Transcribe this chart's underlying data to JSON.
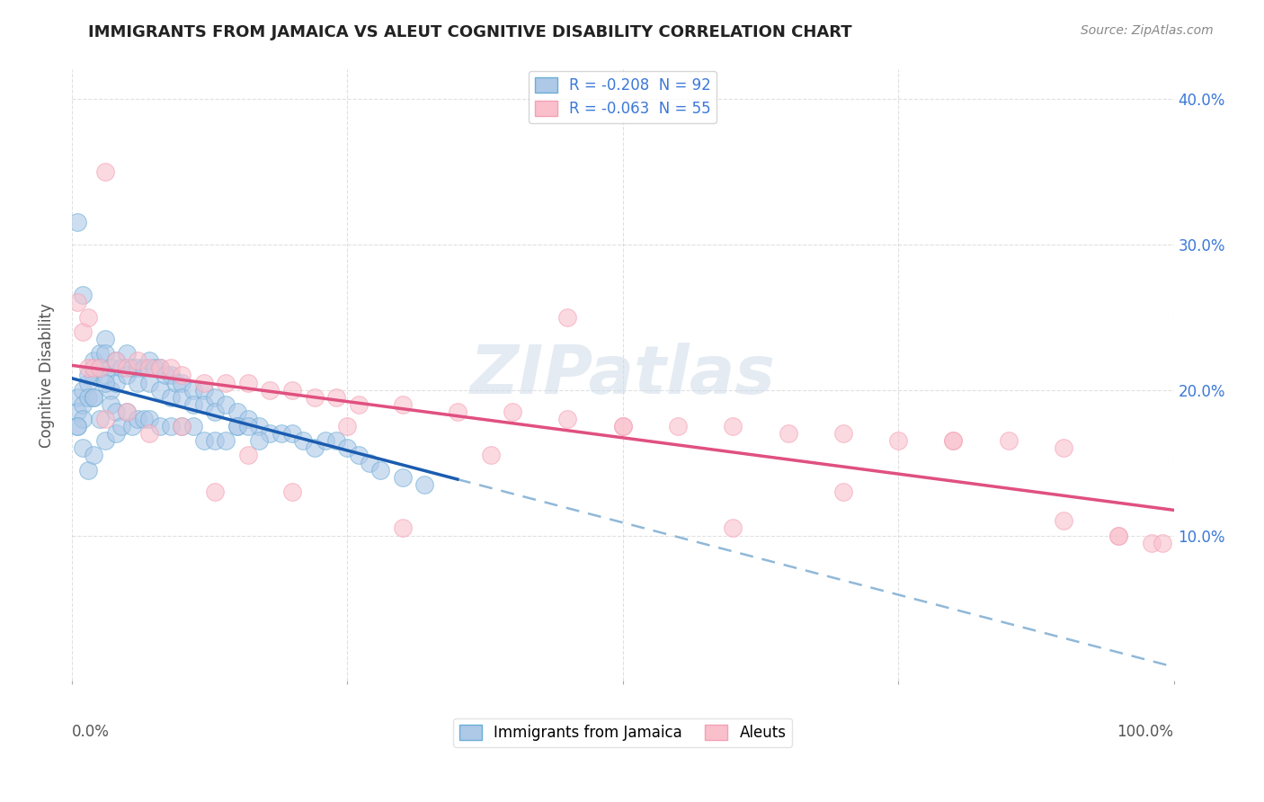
{
  "title": "IMMIGRANTS FROM JAMAICA VS ALEUT COGNITIVE DISABILITY CORRELATION CHART",
  "source": "Source: ZipAtlas.com",
  "ylabel": "Cognitive Disability",
  "legend_blue_r": "R = -0.208",
  "legend_blue_n": "N = 92",
  "legend_pink_r": "R = -0.063",
  "legend_pink_n": "N = 55",
  "legend_blue_label": "Immigrants from Jamaica",
  "legend_pink_label": "Aleuts",
  "blue_face": "#aec8e8",
  "blue_edge": "#6baed6",
  "pink_face": "#f9c0cc",
  "pink_edge": "#f4a0b4",
  "trend_blue_solid": "#1a5cb0",
  "trend_pink_solid": "#e05080",
  "trend_blue_dash": "#90b8d8",
  "watermark_color": "#d0dce8",
  "background": "#ffffff",
  "grid_color": "#cccccc",
  "tick_color": "#3c78d8",
  "title_color": "#222222",
  "source_color": "#888888",
  "blue_x": [
    0.5,
    0.5,
    0.5,
    1.0,
    1.0,
    1.0,
    1.5,
    1.5,
    2.0,
    2.0,
    2.0,
    2.5,
    2.5,
    3.0,
    3.0,
    3.0,
    3.5,
    3.5,
    4.0,
    4.0,
    4.5,
    5.0,
    5.0,
    5.5,
    6.0,
    6.0,
    6.5,
    7.0,
    7.0,
    7.5,
    8.0,
    8.0,
    8.5,
    9.0,
    9.0,
    9.5,
    10.0,
    10.0,
    11.0,
    11.0,
    12.0,
    12.0,
    13.0,
    13.0,
    14.0,
    15.0,
    15.0,
    16.0,
    17.0,
    18.0,
    19.0,
    20.0,
    21.0,
    22.0,
    23.0,
    24.0,
    25.0,
    26.0,
    27.0,
    28.0,
    30.0,
    32.0,
    0.5,
    0.5,
    1.0,
    1.0,
    1.5,
    1.5,
    2.0,
    2.0,
    2.5,
    3.0,
    3.0,
    3.5,
    4.0,
    4.0,
    4.5,
    5.0,
    5.5,
    6.0,
    6.5,
    7.0,
    8.0,
    9.0,
    10.0,
    11.0,
    12.0,
    13.0,
    14.0,
    15.0,
    16.0,
    17.0
  ],
  "blue_y": [
    0.195,
    0.185,
    0.175,
    0.2,
    0.19,
    0.18,
    0.205,
    0.195,
    0.22,
    0.21,
    0.195,
    0.225,
    0.215,
    0.235,
    0.225,
    0.21,
    0.215,
    0.2,
    0.22,
    0.205,
    0.215,
    0.225,
    0.21,
    0.215,
    0.215,
    0.205,
    0.215,
    0.22,
    0.205,
    0.215,
    0.215,
    0.2,
    0.21,
    0.21,
    0.195,
    0.205,
    0.205,
    0.195,
    0.2,
    0.19,
    0.2,
    0.19,
    0.195,
    0.185,
    0.19,
    0.185,
    0.175,
    0.18,
    0.175,
    0.17,
    0.17,
    0.17,
    0.165,
    0.16,
    0.165,
    0.165,
    0.16,
    0.155,
    0.15,
    0.145,
    0.14,
    0.135,
    0.315,
    0.175,
    0.265,
    0.16,
    0.21,
    0.145,
    0.195,
    0.155,
    0.18,
    0.205,
    0.165,
    0.19,
    0.185,
    0.17,
    0.175,
    0.185,
    0.175,
    0.18,
    0.18,
    0.18,
    0.175,
    0.175,
    0.175,
    0.175,
    0.165,
    0.165,
    0.165,
    0.175,
    0.175,
    0.165
  ],
  "pink_x": [
    0.5,
    1.0,
    1.5,
    1.5,
    2.0,
    2.5,
    3.0,
    4.0,
    5.0,
    6.0,
    7.0,
    8.0,
    9.0,
    10.0,
    12.0,
    14.0,
    16.0,
    18.0,
    20.0,
    22.0,
    24.0,
    26.0,
    30.0,
    35.0,
    40.0,
    45.0,
    50.0,
    55.0,
    60.0,
    65.0,
    70.0,
    75.0,
    80.0,
    85.0,
    90.0,
    95.0,
    3.0,
    5.0,
    7.0,
    10.0,
    13.0,
    16.0,
    20.0,
    25.0,
    30.0,
    38.0,
    45.0,
    50.0,
    60.0,
    70.0,
    80.0,
    90.0,
    95.0,
    98.0,
    99.0
  ],
  "pink_y": [
    0.26,
    0.24,
    0.25,
    0.215,
    0.215,
    0.215,
    0.35,
    0.22,
    0.215,
    0.22,
    0.215,
    0.215,
    0.215,
    0.21,
    0.205,
    0.205,
    0.205,
    0.2,
    0.2,
    0.195,
    0.195,
    0.19,
    0.19,
    0.185,
    0.185,
    0.18,
    0.175,
    0.175,
    0.175,
    0.17,
    0.17,
    0.165,
    0.165,
    0.165,
    0.16,
    0.1,
    0.18,
    0.185,
    0.17,
    0.175,
    0.13,
    0.155,
    0.13,
    0.175,
    0.105,
    0.155,
    0.25,
    0.175,
    0.105,
    0.13,
    0.165,
    0.11,
    0.1,
    0.095,
    0.095
  ],
  "xlim": [
    0,
    100
  ],
  "ylim": [
    0.0,
    0.42
  ],
  "yticks": [
    0.0,
    0.1,
    0.2,
    0.3,
    0.4
  ],
  "ytick_labels": [
    "",
    "10.0%",
    "20.0%",
    "30.0%",
    "40.0%"
  ],
  "blue_r": -0.208,
  "pink_r": -0.063,
  "blue_trend_xmax": 35,
  "pink_trend_xmax": 100
}
